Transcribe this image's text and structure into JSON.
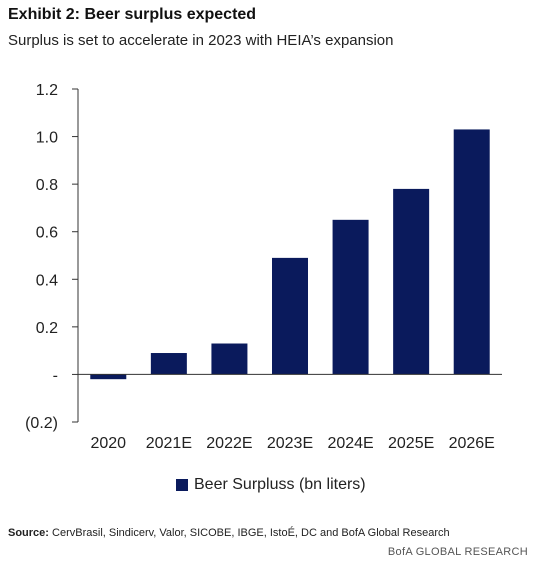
{
  "header": {
    "title": "Exhibit 2: Beer surplus expected",
    "subtitle": "Surplus is set to accelerate in 2023 with HEIA’s expansion"
  },
  "footer": {
    "source_label": "Source:",
    "source_text": "CervBrasil, Sindicerv, Valor, SICOBE, IBGE, IstoÉ, DC and BofA Global Research",
    "brand": "BofA GLOBAL RESEARCH"
  },
  "colors": {
    "bar": "#0a1a5c",
    "axis": "#333333"
  },
  "chart_data": {
    "type": "bar",
    "categories": [
      "2020",
      "2021E",
      "2022E",
      "2023E",
      "2024E",
      "2025E",
      "2026E"
    ],
    "series": [
      {
        "name": "Beer Surpluss (bn liters)",
        "values": [
          -0.02,
          0.09,
          0.13,
          0.49,
          0.65,
          0.78,
          1.03
        ]
      }
    ],
    "y_ticks": [
      1.2,
      1.0,
      0.8,
      0.6,
      0.4,
      0.2,
      0,
      -0.2
    ],
    "y_tick_labels": [
      "1.2",
      "1.0",
      "0.8",
      "0.6",
      "0.4",
      "0.2",
      "-",
      "(0.2)"
    ],
    "ylim": [
      -0.2,
      1.2
    ],
    "grid": false,
    "legend_position": "bottom"
  }
}
